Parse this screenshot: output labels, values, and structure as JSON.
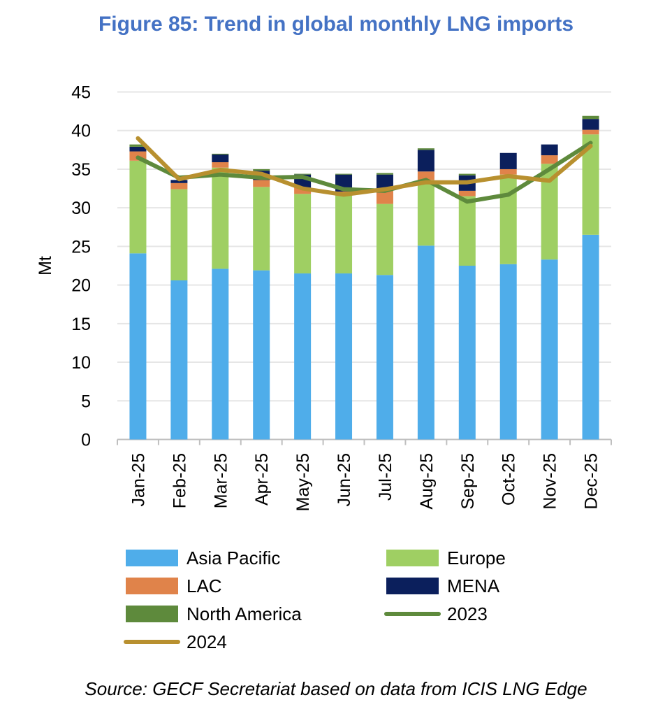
{
  "chart_data": {
    "type": "bar",
    "stacked": true,
    "title": "Figure 85: Trend in global monthly LNG imports",
    "ylabel": "Mt",
    "xlabel": "",
    "ylim": [
      0,
      45
    ],
    "yticks": [
      "0",
      "5",
      "10",
      "15",
      "20",
      "25",
      "30",
      "35",
      "40",
      "45"
    ],
    "grid": true,
    "legend_position": "bottom",
    "categories": [
      "Jan-25",
      "Feb-25",
      "Mar-25",
      "Apr-25",
      "May-25",
      "Jun-25",
      "Jul-25",
      "Aug-25",
      "Sep-25",
      "Oct-25",
      "Nov-25",
      "Dec-25"
    ],
    "series": [
      {
        "name": "Asia Pacific",
        "kind": "bar",
        "color": "#4FADEA",
        "values": [
          24.1,
          20.6,
          22.1,
          21.9,
          21.5,
          21.5,
          21.3,
          25.1,
          22.5,
          22.7,
          23.3,
          26.5
        ]
      },
      {
        "name": "Europe",
        "kind": "bar",
        "color": "#9FCF63",
        "values": [
          12.0,
          11.8,
          13.1,
          10.8,
          10.3,
          10.3,
          9.2,
          8.5,
          9.0,
          11.6,
          12.4,
          13.0
        ]
      },
      {
        "name": "LAC",
        "kind": "bar",
        "color": "#E0834A",
        "values": [
          1.2,
          0.8,
          0.7,
          0.9,
          0.8,
          0.3,
          1.9,
          1.1,
          0.7,
          0.7,
          1.1,
          0.6
        ]
      },
      {
        "name": "MENA",
        "kind": "bar",
        "color": "#0B1F5C",
        "values": [
          0.6,
          0.4,
          1.0,
          1.2,
          1.7,
          2.2,
          1.9,
          2.8,
          2.0,
          2.1,
          1.4,
          1.4
        ]
      },
      {
        "name": "North America",
        "kind": "bar",
        "color": "#5E8A3C",
        "values": [
          0.3,
          0.0,
          0.1,
          0.2,
          0.1,
          0.1,
          0.2,
          0.2,
          0.2,
          0.0,
          0.0,
          0.4
        ]
      },
      {
        "name": "2023",
        "kind": "line",
        "color": "#5E8A3C",
        "values": [
          36.5,
          33.9,
          34.3,
          33.9,
          34.0,
          32.4,
          32.2,
          33.6,
          30.8,
          31.7,
          35.0,
          38.4
        ]
      },
      {
        "name": "2024",
        "kind": "line",
        "color": "#B8902F",
        "values": [
          39.0,
          33.7,
          34.9,
          34.4,
          32.5,
          31.7,
          32.4,
          33.3,
          33.3,
          34.1,
          33.5,
          38.0
        ]
      }
    ]
  },
  "source": "Source: GECF Secretariat based on data from ICIS LNG Edge"
}
